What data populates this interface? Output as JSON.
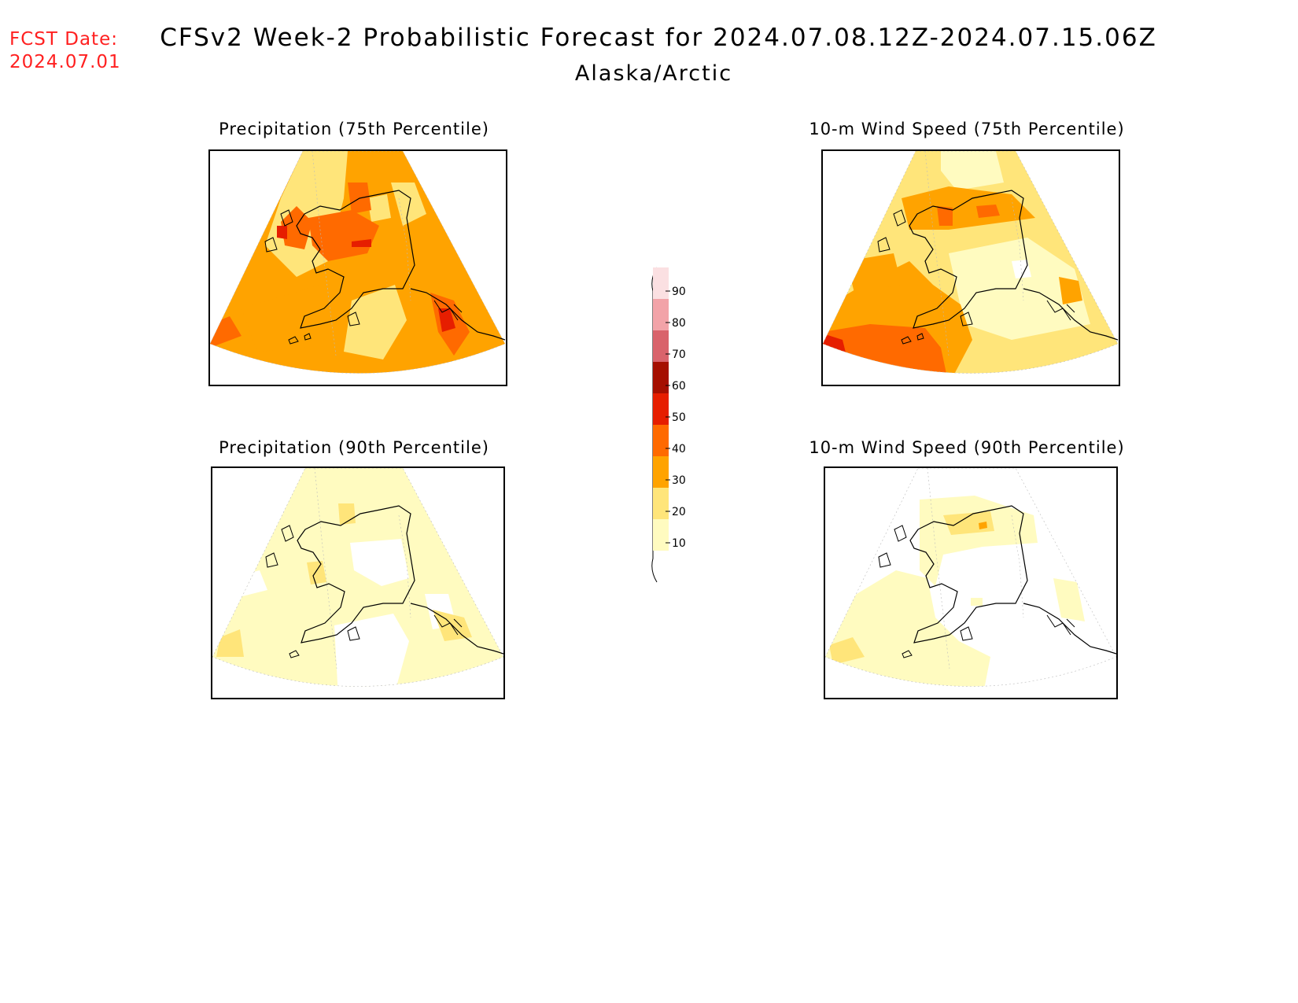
{
  "header": {
    "fcst_label": "FCST Date:",
    "fcst_date": "2024.07.01",
    "title": "CFSv2 Week-2 Probabilistic Forecast for 2024.07.08.12Z-2024.07.15.06Z",
    "region": "Alaska/Arctic"
  },
  "panels": [
    {
      "title": "Precipitation (75th Percentile)",
      "dominant_band": 30
    },
    {
      "title": "10-m Wind Speed (75th Percentile)",
      "dominant_band": 20
    },
    {
      "title": "Precipitation (90th Percentile)",
      "dominant_band": 10
    },
    {
      "title": "10-m Wind Speed (90th Percentile)",
      "dominant_band": 10
    }
  ],
  "colorbar": {
    "ticks": [
      "10",
      "20",
      "30",
      "40",
      "50",
      "60",
      "70",
      "80",
      "90"
    ],
    "colors": [
      "#fffbc0",
      "#ffe57a",
      "#ffa300",
      "#ff6a00",
      "#e61e00",
      "#a50f00",
      "#d9636b",
      "#f2a3a8",
      "#fbe0e2"
    ]
  }
}
